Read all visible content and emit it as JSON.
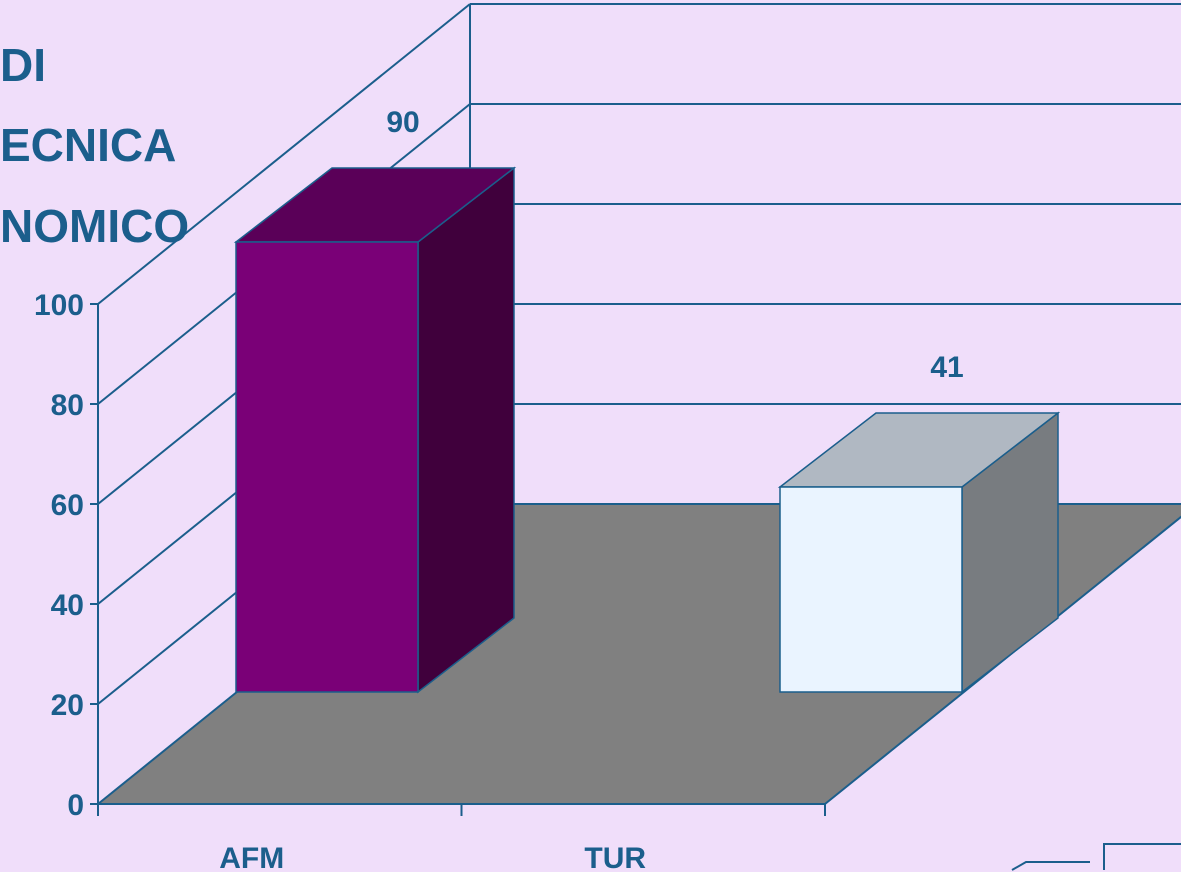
{
  "title_lines": [
    "DI",
    "ECNICA",
    "NOMICO"
  ],
  "colors": {
    "background": "#F0DEFA",
    "text": "#1B5E8C",
    "axis": "#1B5E8C",
    "floor": "#808080",
    "series": [
      {
        "front": "#7A0077",
        "top": "#5A0058",
        "side": "#40003C"
      },
      {
        "front": "#EAF4FF",
        "top": "#B0B8C2",
        "side": "#787C80"
      }
    ]
  },
  "chart_data": {
    "type": "bar",
    "title": "",
    "xlabel": "",
    "ylabel": "",
    "categories": [
      "AFM",
      "TUR"
    ],
    "values": [
      90,
      41
    ],
    "data_labels": [
      "90",
      "41"
    ],
    "yticks": [
      "0",
      "20",
      "40",
      "60",
      "80",
      "100"
    ],
    "ylim": [
      0,
      100
    ],
    "grid": true,
    "three_d": true,
    "legend": "none"
  }
}
